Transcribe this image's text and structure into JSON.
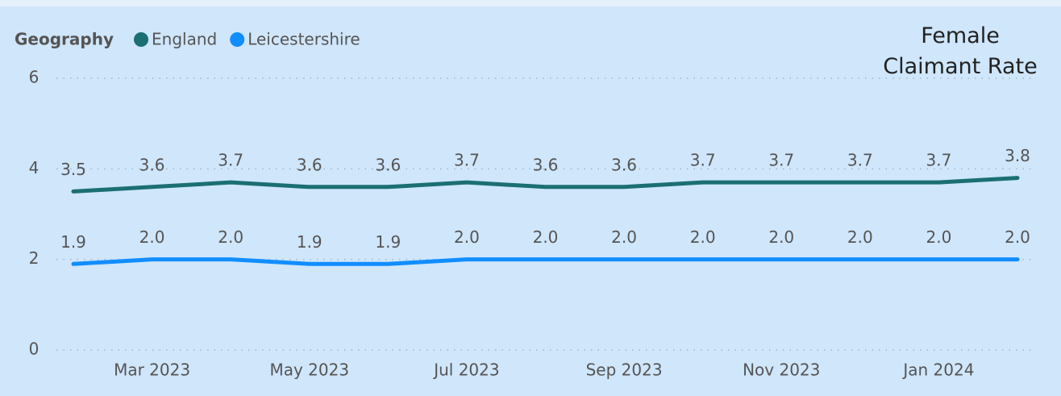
{
  "chart_data": {
    "type": "line",
    "title": "Female Claimant Rate",
    "legend_title": "Geography",
    "legend": "top-left",
    "categories": [
      null,
      "Mar 2023",
      null,
      "May 2023",
      null,
      "Jul 2023",
      null,
      "Sep 2023",
      null,
      "Nov 2023",
      null,
      "Jan 2024",
      null
    ],
    "series": [
      {
        "name": "England",
        "color": "#1b6f73",
        "values": [
          3.5,
          3.6,
          3.7,
          3.6,
          3.6,
          3.7,
          3.6,
          3.6,
          3.7,
          3.7,
          3.7,
          3.7,
          3.8
        ],
        "value_labels": [
          "3.5",
          "3.6",
          "3.7",
          "3.6",
          "3.6",
          "3.7",
          "3.6",
          "3.6",
          "3.7",
          "3.7",
          "3.7",
          "3.7",
          "3.8"
        ]
      },
      {
        "name": "Leicestershire",
        "color": "#118dff",
        "values": [
          1.9,
          2,
          2,
          1.9,
          1.9,
          2,
          2,
          2,
          2,
          2,
          2,
          2,
          2
        ],
        "value_labels": [
          "1.9",
          "2.0",
          "2.0",
          "1.9",
          "1.9",
          "2.0",
          "2.0",
          "2.0",
          "2.0",
          "2.0",
          "2.0",
          "2.0",
          "2.0"
        ]
      }
    ],
    "ylim": [
      0,
      6
    ],
    "yticks": [
      0,
      2,
      4,
      6
    ],
    "grid": true
  }
}
